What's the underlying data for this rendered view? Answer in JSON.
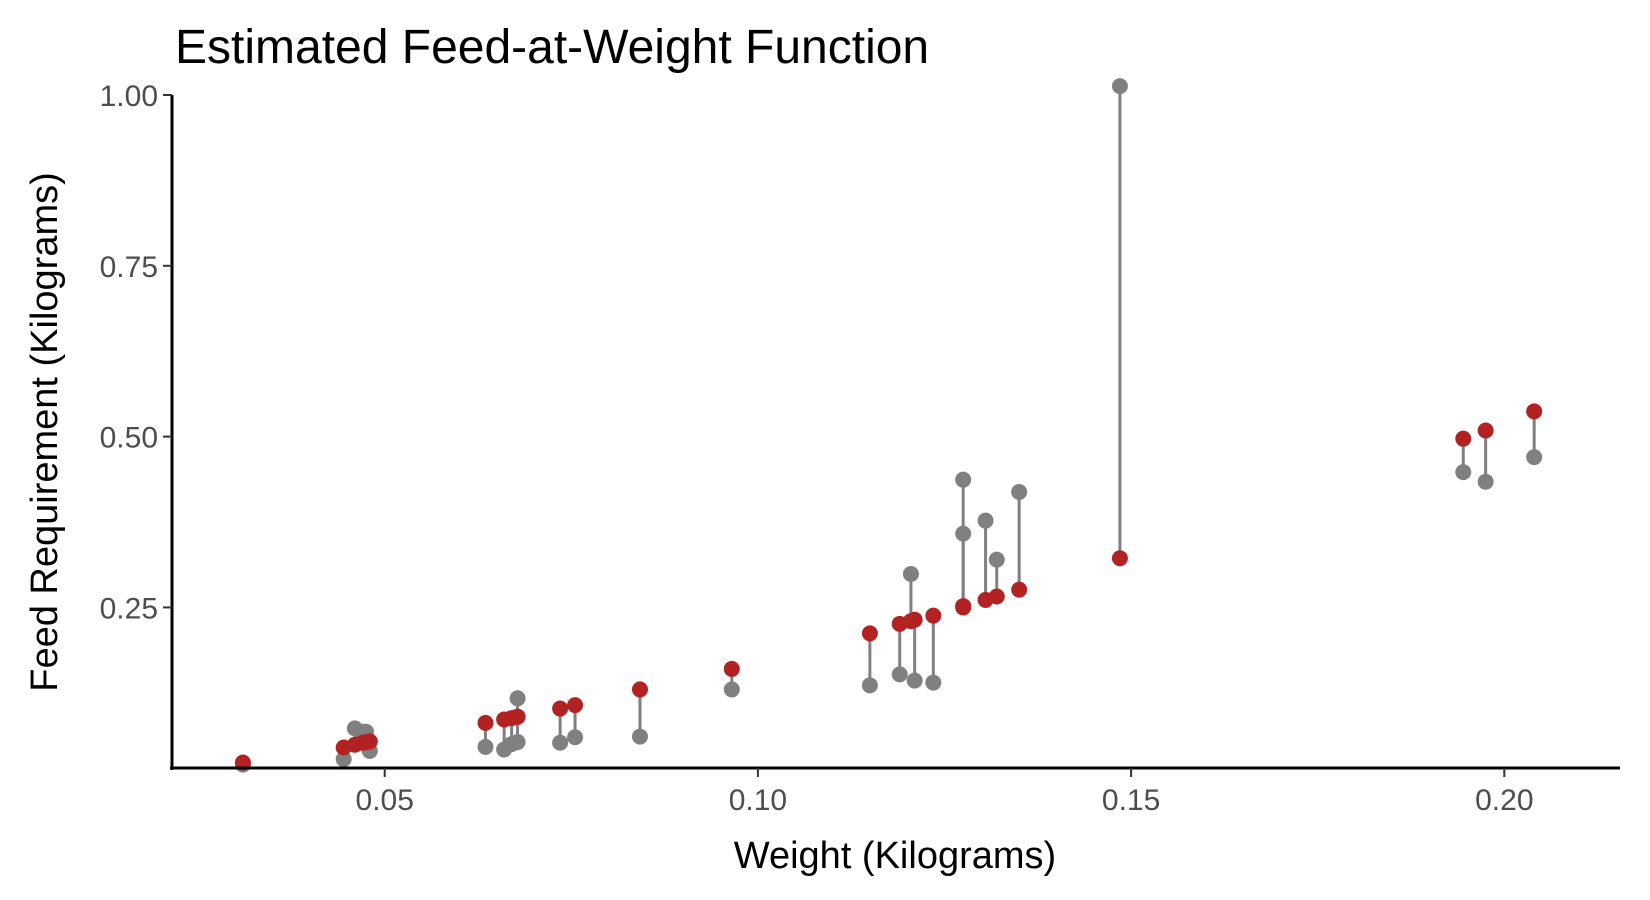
{
  "chart_data": {
    "type": "scatter",
    "title": "Estimated Feed-at-Weight Function",
    "xlabel": "Weight (Kilograms)",
    "ylabel": "Feed Requirement (Kilograms)",
    "xlim": [
      0.0215,
      0.2155
    ],
    "ylim": [
      0.015,
      1.0
    ],
    "x_ticks": [
      0.05,
      0.1,
      0.15,
      0.2
    ],
    "x_tick_labels": [
      "0.05",
      "0.10",
      "0.15",
      "0.20"
    ],
    "y_ticks": [
      0.25,
      0.5,
      0.75,
      1.0
    ],
    "y_tick_labels": [
      "0.25",
      "0.50",
      "0.75",
      "1.00"
    ],
    "grid": false,
    "legend": "none",
    "colors": {
      "observed": "#808080",
      "estimated": "#b22222",
      "segment": "#808080"
    },
    "series": [
      {
        "role": "observed",
        "x": [
          0.031,
          0.0445,
          0.046,
          0.047,
          0.0475,
          0.048,
          0.0635,
          0.066,
          0.067,
          0.0678,
          0.0678,
          0.0735,
          0.0755,
          0.0842,
          0.0965,
          0.115,
          0.119,
          0.1205,
          0.121,
          0.1235,
          0.1275,
          0.1275,
          0.1305,
          0.132,
          0.135,
          0.1485,
          0.1945,
          0.1975,
          0.204
        ],
        "y": [
          0.02,
          0.028,
          0.073,
          0.068,
          0.068,
          0.04,
          0.046,
          0.042,
          0.05,
          0.053,
          0.117,
          0.052,
          0.06,
          0.061,
          0.13,
          0.136,
          0.152,
          0.299,
          0.143,
          0.14,
          0.358,
          0.437,
          0.377,
          0.32,
          0.419,
          1.013,
          0.448,
          0.434,
          0.47
        ]
      },
      {
        "role": "estimated",
        "x": [
          0.031,
          0.0445,
          0.046,
          0.047,
          0.0475,
          0.048,
          0.0635,
          0.066,
          0.067,
          0.0678,
          0.0678,
          0.0735,
          0.0755,
          0.0842,
          0.0965,
          0.115,
          0.119,
          0.1205,
          0.121,
          0.1235,
          0.1275,
          0.1275,
          0.1305,
          0.132,
          0.135,
          0.1485,
          0.1945,
          0.1975,
          0.204
        ],
        "y": [
          0.023,
          0.045,
          0.049,
          0.052,
          0.053,
          0.054,
          0.081,
          0.086,
          0.088,
          0.09,
          0.09,
          0.102,
          0.107,
          0.13,
          0.16,
          0.212,
          0.226,
          0.23,
          0.232,
          0.238,
          0.25,
          0.252,
          0.261,
          0.266,
          0.276,
          0.322,
          0.497,
          0.509,
          0.537
        ]
      }
    ]
  }
}
